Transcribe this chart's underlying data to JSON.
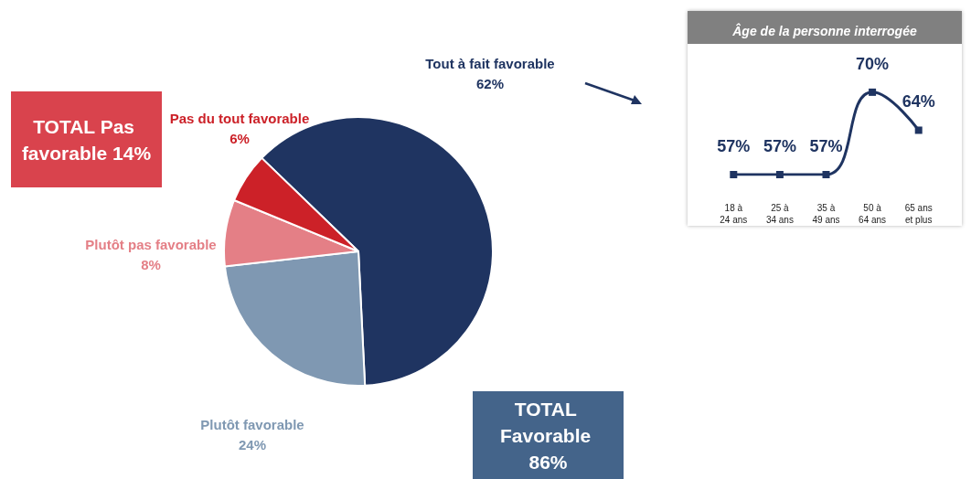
{
  "chart_data": [
    {
      "type": "pie",
      "categories": [
        "Tout à fait favorable",
        "Plutôt favorable",
        "Plutôt pas favorable",
        "Pas du tout favorable"
      ],
      "values": [
        62,
        24,
        8,
        6
      ],
      "value_labels": [
        "62%",
        "24%",
        "8%",
        "6%"
      ],
      "colors": [
        "#1f3461",
        "#7f98b2",
        "#e47f86",
        "#cc2128"
      ],
      "legend": false,
      "annotations": [
        "TOTAL Pas favorable 14%",
        "TOTAL Favorable 86%"
      ]
    },
    {
      "type": "line",
      "title": "Âge de la personne interrogée",
      "categories": [
        "18 à\n24 ans",
        "25 à\n34 ans",
        "35 à\n49 ans",
        "50 à\n64 ans",
        "65 ans\net plus"
      ],
      "series": [
        {
          "color": "#1f3461",
          "values": [
            57,
            57,
            57,
            70,
            64
          ],
          "value_labels": [
            "57%",
            "57%",
            "57%",
            "70%",
            "64%"
          ]
        }
      ],
      "marker": "square",
      "line_style": "solid",
      "grid": false,
      "legend": false,
      "tick_labels": "x"
    }
  ]
}
